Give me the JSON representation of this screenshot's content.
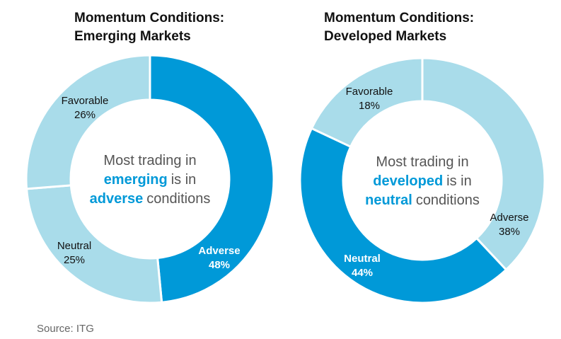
{
  "chart_data": [
    {
      "type": "donut",
      "title": [
        "Momentum Conditions:",
        "Emerging Markets"
      ],
      "categories": [
        "Adverse",
        "Neutral",
        "Favorable"
      ],
      "values": [
        48,
        25,
        26
      ],
      "value_labels": [
        "48%",
        "25%",
        "26%"
      ],
      "colors": [
        "#0099d8",
        "#a9dcea",
        "#a9dcea"
      ],
      "center_text": [
        [
          {
            "text": "Most trading in"
          }
        ],
        [
          {
            "text": "emerging",
            "highlight": true
          },
          {
            "text": "is in"
          }
        ],
        [
          {
            "text": "adverse",
            "highlight": true
          },
          {
            "text": "conditions"
          }
        ]
      ]
    },
    {
      "type": "donut",
      "title": [
        "Momentum Conditions:",
        "Developed Markets"
      ],
      "categories": [
        "Adverse",
        "Neutral",
        "Favorable"
      ],
      "values": [
        38,
        44,
        18
      ],
      "value_labels": [
        "38%",
        "44%",
        "18%"
      ],
      "colors": [
        "#a9dcea",
        "#0099d8",
        "#a9dcea"
      ],
      "center_text": [
        [
          {
            "text": "Most trading in"
          }
        ],
        [
          {
            "text": "developed",
            "highlight": true
          },
          {
            "text": "is in"
          }
        ],
        [
          {
            "text": "neutral",
            "highlight": true
          },
          {
            "text": "conditions"
          }
        ]
      ]
    }
  ],
  "source": "Source: ITG"
}
